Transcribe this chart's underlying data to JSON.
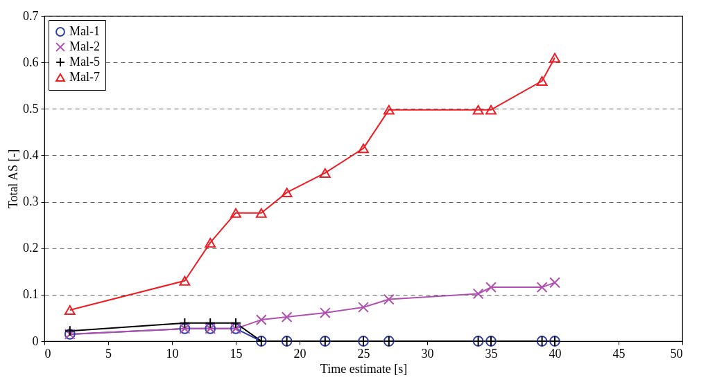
{
  "chart_data": {
    "type": "line",
    "xlabel": "Time estimate [s]",
    "ylabel": "Total AS [-]",
    "x": [
      2,
      11,
      13,
      15,
      17,
      19,
      22,
      25,
      27,
      34,
      35,
      39,
      40
    ],
    "series": [
      {
        "name": "Mal-1",
        "color": "#2e3fa8",
        "marker": "circle",
        "values": [
          0.015,
          0.027,
          0.027,
          0.027,
          0,
          0,
          0,
          0,
          0,
          0,
          0,
          0,
          0
        ]
      },
      {
        "name": "Mal-2",
        "color": "#b04fb0",
        "marker": "cross",
        "values": [
          0.015,
          0.027,
          0.027,
          0.027,
          0.046,
          0.052,
          0.061,
          0.073,
          0.09,
          0.102,
          0.116,
          0.116,
          0.126
        ]
      },
      {
        "name": "Mal-5",
        "color": "#000000",
        "marker": "plus",
        "values": [
          0.022,
          0.039,
          0.039,
          0.039,
          0,
          0,
          0,
          0,
          0,
          0,
          0,
          0,
          0
        ]
      },
      {
        "name": "Mal-7",
        "color": "#ee1c23",
        "marker": "triangle",
        "values": [
          0.067,
          0.13,
          0.212,
          0.276,
          0.276,
          0.32,
          0.362,
          0.415,
          0.498,
          0.498,
          0.498,
          0.56,
          0.61
        ]
      }
    ],
    "xlim": [
      0,
      50
    ],
    "xticks": [
      0,
      5,
      10,
      15,
      20,
      25,
      30,
      35,
      40,
      45,
      50
    ],
    "ylim": [
      0,
      0.7
    ],
    "yticks": [
      0,
      0.1,
      0.2,
      0.3,
      0.4,
      0.5,
      0.6,
      0.7
    ],
    "grid": "y",
    "legend": "top left",
    "line_style": "solid"
  }
}
